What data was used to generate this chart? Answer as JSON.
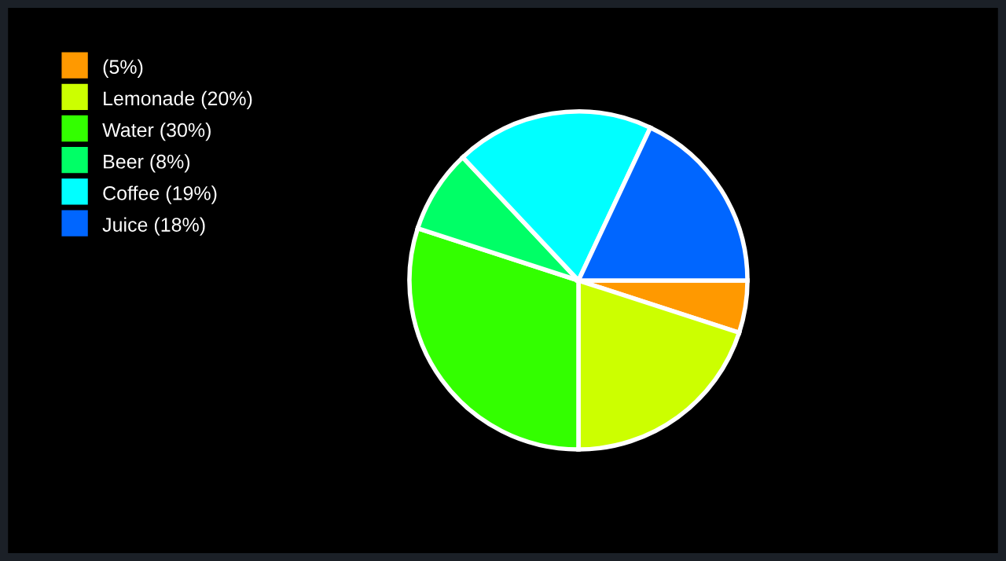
{
  "chart_data": {
    "type": "pie",
    "categories": [
      "(5%)",
      "Lemonade (20%)",
      "Water (30%)",
      "Beer (8%)",
      "Coffee (19%)",
      "Juice (18%)"
    ],
    "values": [
      5,
      20,
      30,
      8,
      19,
      18
    ],
    "colors": [
      "#ff9900",
      "#ccff00",
      "#33ff00",
      "#00ff66",
      "#00ffff",
      "#0066ff"
    ],
    "legend": "top left"
  }
}
